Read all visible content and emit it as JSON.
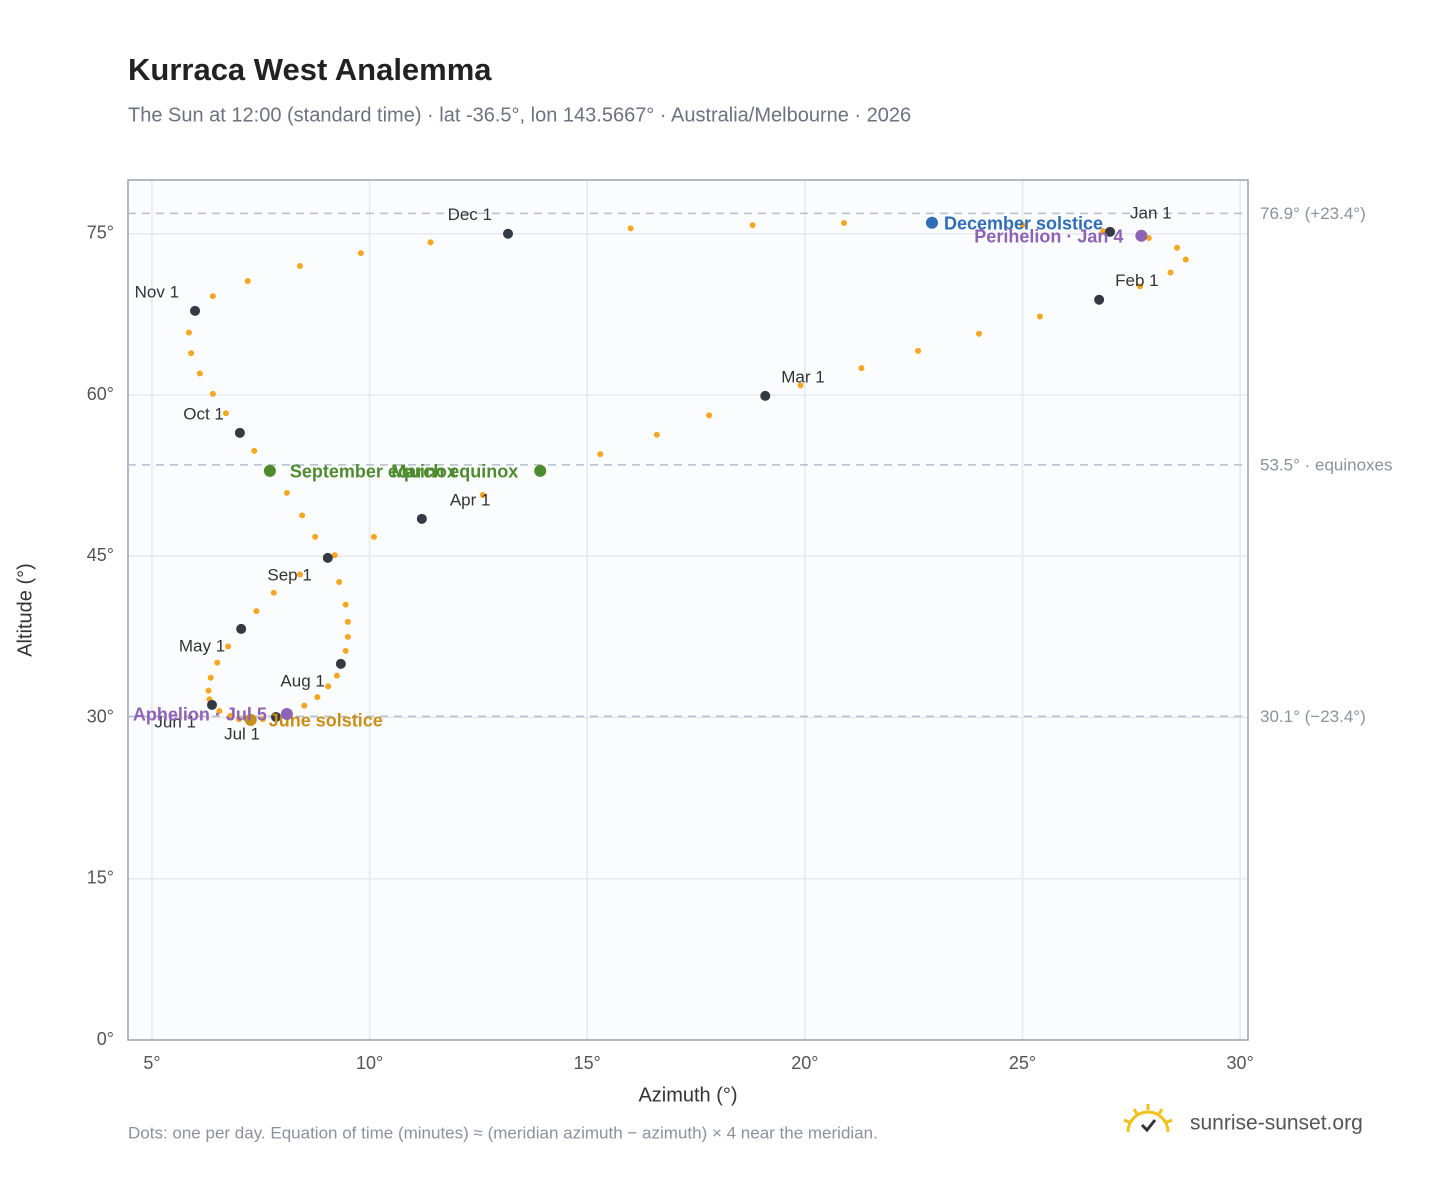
{
  "chart_data": {
    "type": "scatter",
    "title": "Kurraca West Analemma",
    "subtitle": "The Sun at 12:00 (standard time) · lat -36.5°, lon 143.5667° · Australia/Melbourne · 2026",
    "x_label": "Azimuth (°)",
    "y_label": "Altitude (°)",
    "footnote": "Dots: one per day. Equation of time (minutes) ≈ (meridian azimuth − azimuth) × 4 near the meridian.",
    "brand": "sunrise-sunset.org",
    "xlim": [
      4.45,
      30.18
    ],
    "ylim": [
      0,
      80
    ],
    "xticks": [
      {
        "value": 5,
        "label": "5°"
      },
      {
        "value": 10,
        "label": "10°"
      },
      {
        "value": 15,
        "label": "15°"
      },
      {
        "value": 20,
        "label": "20°"
      },
      {
        "value": 25,
        "label": "25°"
      },
      {
        "value": 30,
        "label": "30°"
      }
    ],
    "yticks": [
      {
        "value": 0,
        "label": "0°"
      },
      {
        "value": 15,
        "label": "15°"
      },
      {
        "value": 30,
        "label": "30°"
      },
      {
        "value": 45,
        "label": "45°"
      },
      {
        "value": 60,
        "label": "60°"
      },
      {
        "value": 75,
        "label": "75°"
      }
    ],
    "grid": true,
    "path": {
      "color": "#f5a623",
      "x": [
        27.01,
        27.9,
        28.55,
        28.75,
        28.4,
        27.7,
        26.76,
        25.4,
        24.0,
        22.6,
        21.3,
        19.9,
        19.09,
        17.8,
        16.6,
        15.3,
        13.92,
        12.6,
        11.2,
        10.1,
        9.2,
        8.4,
        7.8,
        7.4,
        7.05,
        6.75,
        6.5,
        6.35,
        6.3,
        6.32,
        6.38,
        6.55,
        6.8,
        7.0,
        7.27,
        7.55,
        7.85,
        8.15,
        8.5,
        8.8,
        9.05,
        9.25,
        9.34,
        9.45,
        9.5,
        9.5,
        9.45,
        9.3,
        9.04,
        8.75,
        8.45,
        8.1,
        7.71,
        7.35,
        7.02,
        6.7,
        6.4,
        6.1,
        5.9,
        5.85,
        5.99,
        6.4,
        7.2,
        8.4,
        9.8,
        11.4,
        13.18,
        16.0,
        18.8,
        20.9,
        22.92,
        25.0,
        26.85
      ],
      "y": [
        75.18,
        74.6,
        73.7,
        72.6,
        71.4,
        70.1,
        68.86,
        67.3,
        65.7,
        64.1,
        62.5,
        60.9,
        59.92,
        58.1,
        56.3,
        54.5,
        52.94,
        50.7,
        48.48,
        46.8,
        45.1,
        43.3,
        41.6,
        39.9,
        38.24,
        36.6,
        35.1,
        33.7,
        32.5,
        31.7,
        31.17,
        30.6,
        30.15,
        29.85,
        29.78,
        29.85,
        30.05,
        30.45,
        31.1,
        31.9,
        32.9,
        33.9,
        34.99,
        36.2,
        37.5,
        38.9,
        40.5,
        42.6,
        44.85,
        46.8,
        48.8,
        50.9,
        52.94,
        54.8,
        56.48,
        58.3,
        60.1,
        62.0,
        63.9,
        65.8,
        67.83,
        69.2,
        70.6,
        72.0,
        73.2,
        74.2,
        75.0,
        75.5,
        75.8,
        76.0,
        76.02,
        75.8,
        75.25
      ]
    },
    "month_markers": {
      "color": "#333a44",
      "labels": [
        "Jan 1",
        "Feb 1",
        "Mar 1",
        "Apr 1",
        "May 1",
        "Jun 1",
        "Jul 1",
        "Aug 1",
        "Sep 1",
        "Oct 1",
        "Nov 1",
        "Dec 1"
      ],
      "x": [
        27.01,
        26.76,
        19.09,
        11.2,
        7.05,
        6.38,
        7.85,
        9.34,
        9.04,
        7.02,
        5.99,
        13.18
      ],
      "y": [
        75.18,
        68.86,
        59.92,
        48.48,
        38.24,
        31.17,
        30.05,
        34.99,
        44.85,
        56.48,
        67.83,
        75.0
      ]
    },
    "events": [
      {
        "label": "December solstice",
        "x": 22.92,
        "y": 76.02,
        "color": "#2f6db5"
      },
      {
        "label": "Perihelion · Jan 4",
        "x": 27.73,
        "y": 74.81,
        "color": "#8e62b5"
      },
      {
        "label": "March equinox",
        "x": 13.92,
        "y": 52.94,
        "color": "#4e8a2e"
      },
      {
        "label": "September equinox",
        "x": 7.71,
        "y": 52.94,
        "color": "#4e8a2e"
      },
      {
        "label": "June solstice",
        "x": 7.27,
        "y": 29.78,
        "color": "#c89018"
      },
      {
        "label": "Aphelion · Jul 5",
        "x": 8.1,
        "y": 30.33,
        "color": "#8e62b5"
      }
    ],
    "reference_lines": [
      {
        "value": 76.9,
        "label": "76.9° (+23.4°)"
      },
      {
        "value": 53.5,
        "label": "53.5° · equinoxes"
      },
      {
        "value": 30.1,
        "label": "30.1° (−23.4°)"
      }
    ]
  }
}
